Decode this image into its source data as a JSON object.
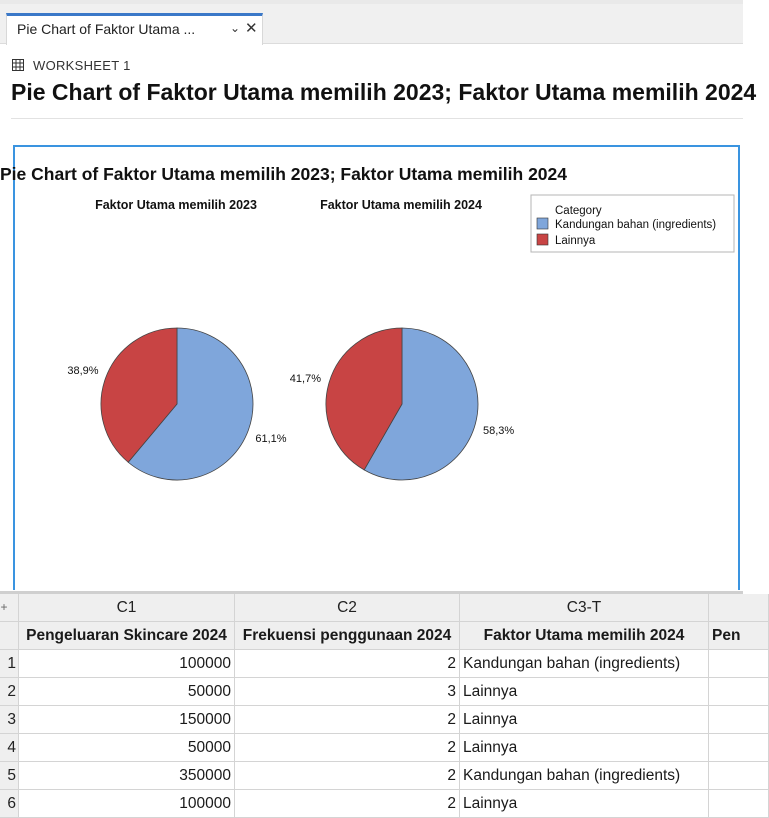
{
  "tab": {
    "label": "Pie Chart of Faktor Utama ...",
    "chevron": "⌄",
    "close": "✕"
  },
  "worksheet": {
    "icon": "grid-icon",
    "label": "WORKSHEET 1"
  },
  "page_title": "Pie Chart of Faktor Utama memilih 2023; Faktor Utama memilih 2024",
  "chart_data": {
    "type": "pie",
    "title": "Pie Chart of Faktor Utama memilih 2023; Faktor Utama memilih 2024",
    "legend": {
      "title": "Category",
      "placement": "top-right",
      "entries": [
        {
          "label": "Kandungan bahan (ingredients)",
          "color": "#7fa6db"
        },
        {
          "label": "Lainnya",
          "color": "#c84444"
        }
      ]
    },
    "pies": [
      {
        "title": "Faktor Utama memilih 2023",
        "labels": [
          "Kandungan bahan (ingredients)",
          "Lainnya"
        ],
        "values": [
          61.1,
          38.9
        ],
        "value_labels": [
          "61,1%",
          "38,9%"
        ]
      },
      {
        "title": "Faktor Utama memilih 2024",
        "labels": [
          "Kandungan bahan (ingredients)",
          "Lainnya"
        ],
        "values": [
          58.3,
          41.7
        ],
        "value_labels": [
          "58,3%",
          "41,7%"
        ]
      }
    ]
  },
  "grid": {
    "corner": "+",
    "columns": [
      {
        "id": "C1",
        "name": "Pengeluaran Skincare 2024"
      },
      {
        "id": "C2",
        "name": "Frekuensi penggunaan 2024"
      },
      {
        "id": "C3-T",
        "name": "Faktor Utama memilih 2024"
      },
      {
        "id": "",
        "name": "Pen"
      }
    ],
    "rows": [
      {
        "n": "1",
        "c1": "100000",
        "c2": "2",
        "c3": "Kandungan bahan (ingredients)"
      },
      {
        "n": "2",
        "c1": "50000",
        "c2": "3",
        "c3": "Lainnya"
      },
      {
        "n": "3",
        "c1": "150000",
        "c2": "2",
        "c3": "Lainnya"
      },
      {
        "n": "4",
        "c1": "50000",
        "c2": "2",
        "c3": "Lainnya"
      },
      {
        "n": "5",
        "c1": "350000",
        "c2": "2",
        "c3": "Kandungan bahan (ingredients)"
      },
      {
        "n": "6",
        "c1": "100000",
        "c2": "2",
        "c3": "Lainnya"
      }
    ]
  }
}
